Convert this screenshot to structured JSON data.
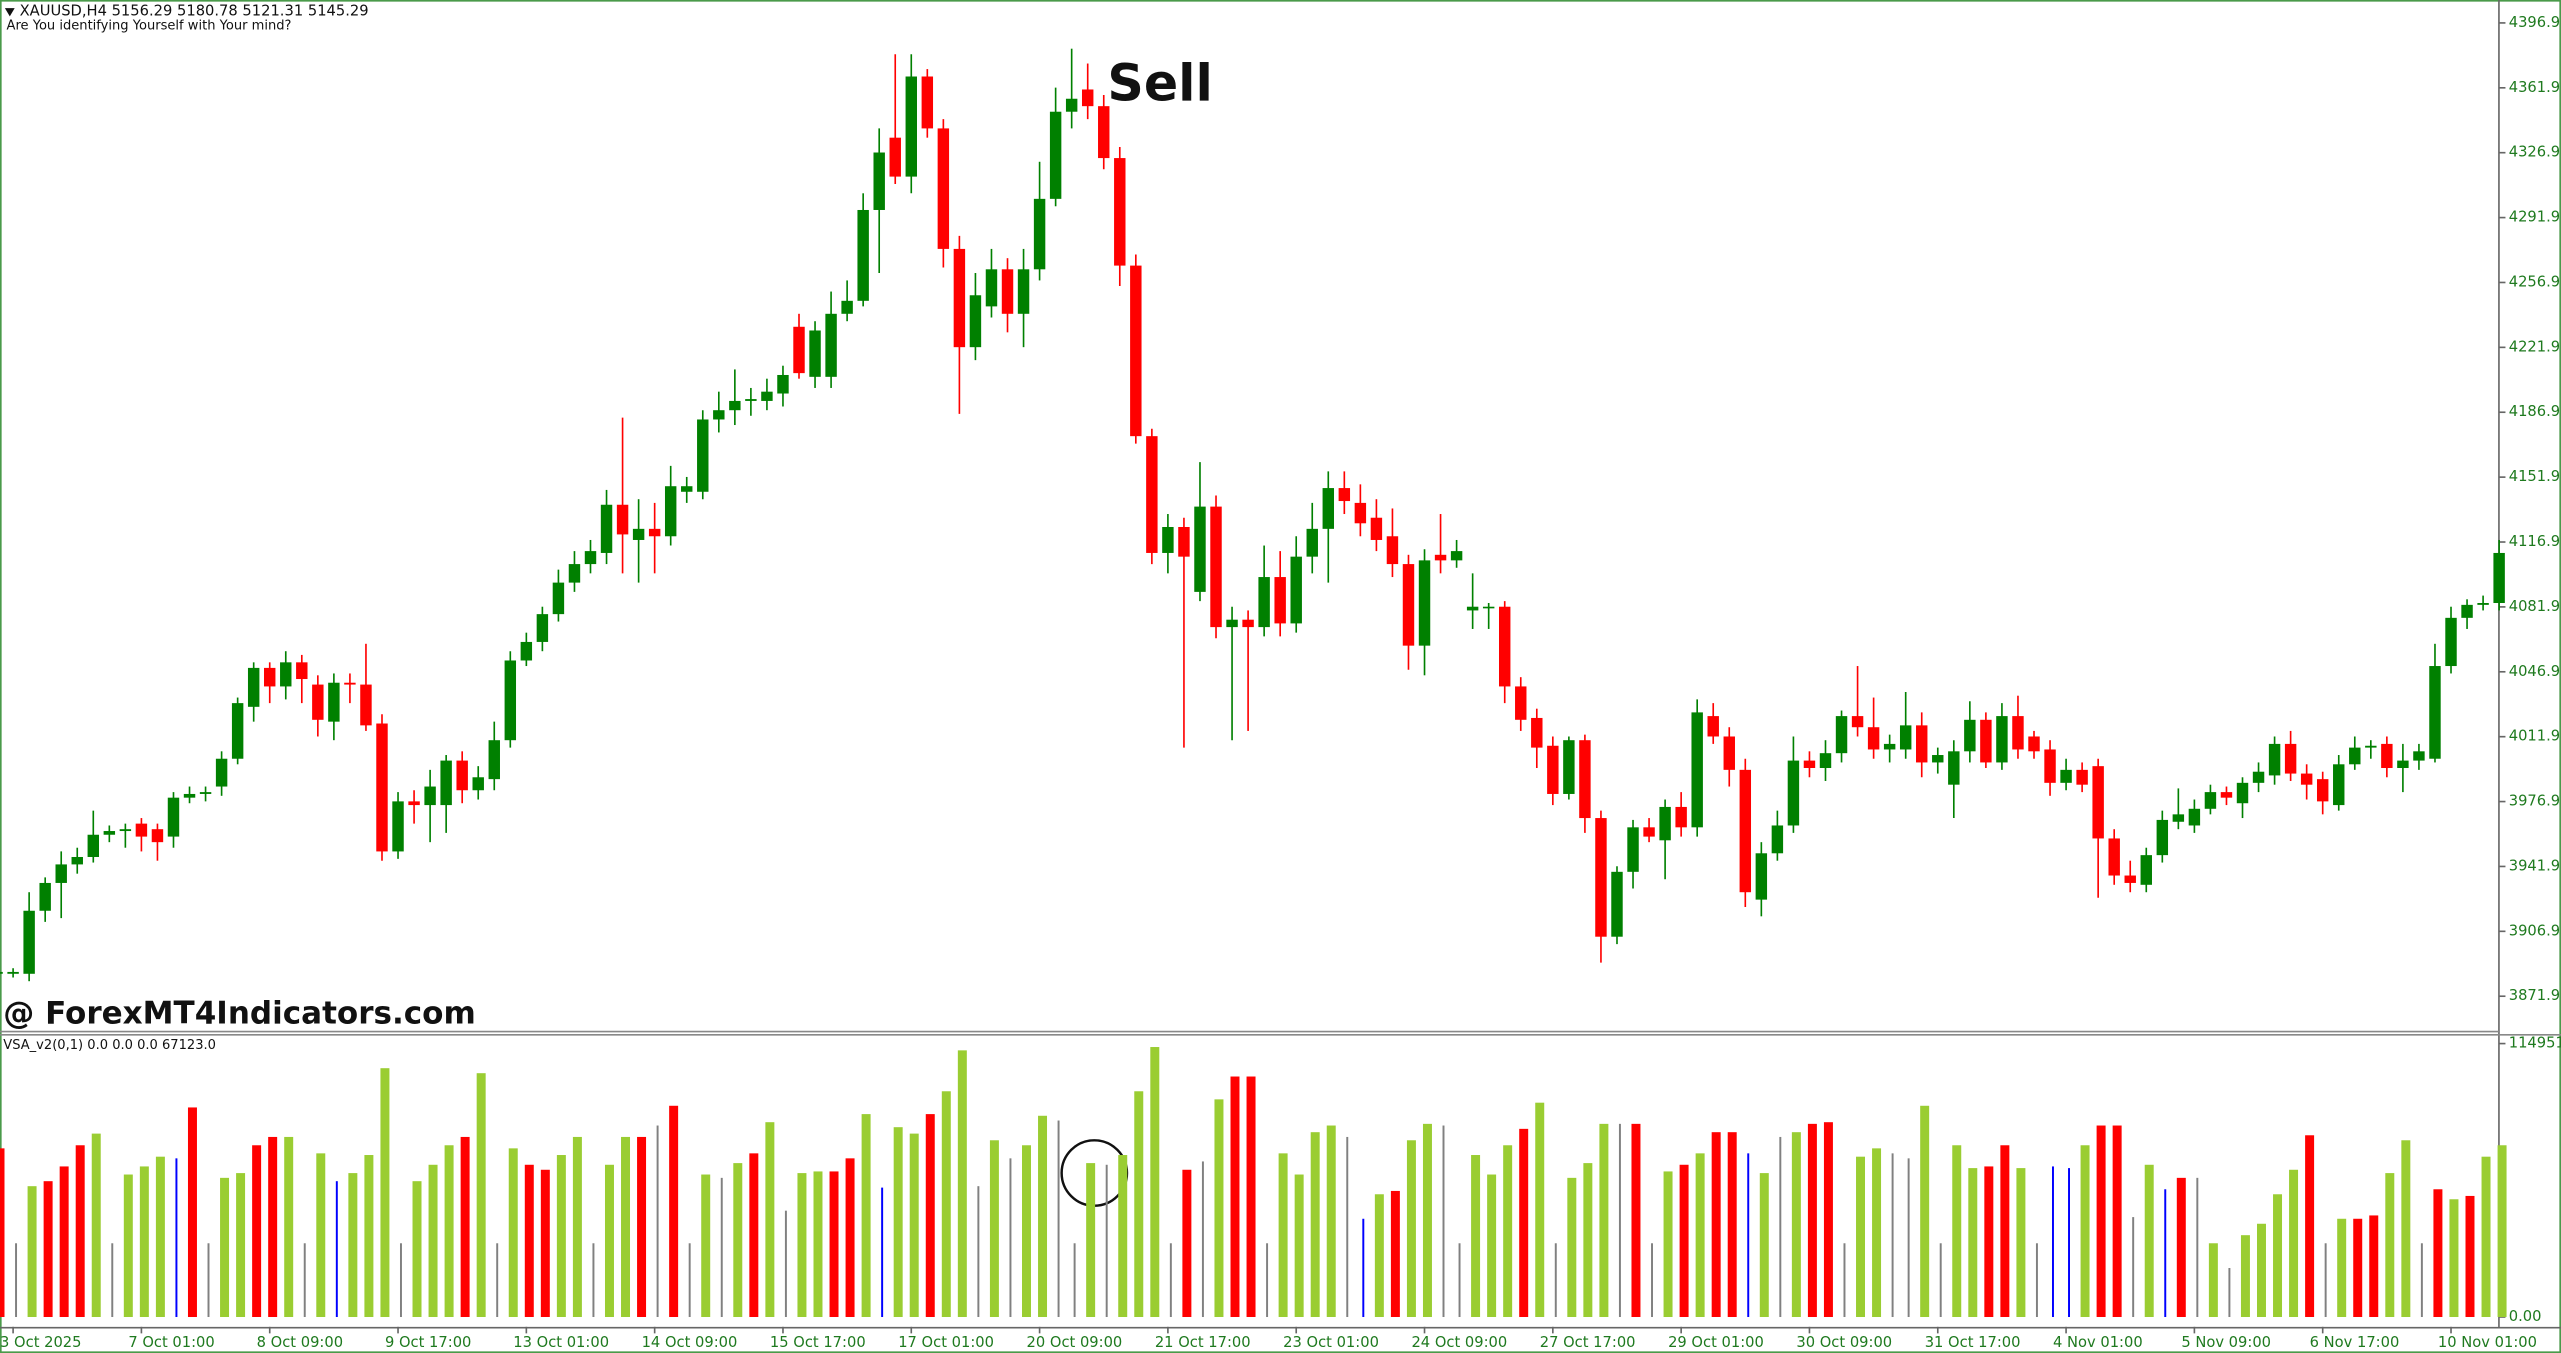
{
  "chart_data": [
    {
      "type": "candlestick",
      "title": "XAUUSD,H4  5156.29 5180.78 5121.31 5145.29",
      "subtitle": "Are You identifying Yourself with Your mind?",
      "annotations": [
        "Sell"
      ],
      "watermark": "@ ForexMT4Indicators.com",
      "up_color": "#008000",
      "down_color": "#ff0000",
      "categories": [
        null,
        "3 Oct 2025",
        null,
        null,
        null,
        null,
        null,
        null,
        null,
        "7 Oct 01:00",
        null,
        null,
        null,
        null,
        null,
        null,
        null,
        "8 Oct 09:00",
        null,
        null,
        null,
        null,
        null,
        null,
        null,
        "9 Oct 17:00",
        null,
        null,
        null,
        null,
        null,
        null,
        null,
        "13 Oct 01:00",
        null,
        null,
        null,
        null,
        null,
        null,
        null,
        "14 Oct 09:00",
        null,
        null,
        null,
        null,
        null,
        null,
        null,
        "15 Oct 17:00",
        null,
        null,
        null,
        null,
        null,
        null,
        null,
        "17 Oct 01:00",
        null,
        null,
        null,
        null,
        null,
        null,
        null,
        "20 Oct 09:00",
        null,
        null,
        null,
        null,
        null,
        null,
        null,
        "21 Oct 17:00",
        null,
        null,
        null,
        null,
        null,
        null,
        null,
        "23 Oct 01:00",
        null,
        null,
        null,
        null,
        null,
        null,
        null,
        "24 Oct 09:00",
        null,
        null,
        null,
        null,
        null,
        null,
        null,
        "27 Oct 17:00",
        null,
        null,
        null,
        null,
        null,
        null,
        null,
        "29 Oct 01:00",
        null,
        null,
        null,
        null,
        null,
        null,
        null,
        "30 Oct 09:00",
        null,
        null,
        null,
        null,
        null,
        null,
        null,
        "31 Oct 17:00",
        null,
        null,
        null,
        null,
        null,
        null,
        null,
        "4 Nov 01:00",
        null,
        null,
        null,
        null,
        null,
        null,
        null,
        "5 Nov 09:00",
        null,
        null,
        null,
        null,
        null,
        null,
        null,
        "6 Nov 17:00",
        null,
        null,
        null,
        null,
        null,
        null,
        null,
        "10 Nov 01:00",
        null,
        null,
        null
      ],
      "open": [
        3884,
        3884,
        3884,
        3918,
        3933,
        3943,
        3947,
        3959,
        3961,
        3965,
        3962,
        3958,
        3979,
        3981,
        3985,
        4000,
        4028,
        4049,
        4039,
        4052,
        4040,
        4020,
        4041,
        4040,
        4019,
        3950,
        3977,
        3975,
        3975,
        3999,
        3983,
        3989,
        4010,
        4053,
        4063,
        4078,
        4095,
        4105,
        4111,
        4137,
        4118,
        4124,
        4120,
        4144,
        4144,
        4183,
        4188,
        4193,
        4193,
        4197,
        4233,
        4206,
        4206,
        4240,
        4247,
        4296,
        4335,
        4314,
        4368,
        4340,
        4275,
        4222,
        4244,
        4264,
        4240,
        4264,
        4302,
        4349,
        4361,
        4352,
        4324,
        4266,
        4174,
        4111,
        4125,
        4090,
        4136,
        4071,
        4075,
        4071,
        4098,
        4073,
        4109,
        4124,
        4146,
        4138,
        4130,
        4120,
        4105,
        4061,
        4110,
        4107,
        4080,
        4082,
        4082,
        4039,
        4022,
        4007,
        3981,
        4010,
        3968,
        3904,
        3939,
        3963,
        3956,
        3974,
        3963,
        4023,
        4012,
        3994,
        3924,
        3949,
        3964,
        3999,
        3995,
        4003,
        4023,
        4017,
        4005,
        4005,
        4018,
        3998,
        3986,
        4004,
        4021,
        3998,
        4023,
        4012,
        4005,
        3987,
        3994,
        3996,
        3957,
        3937,
        3932,
        3948,
        3966,
        3964,
        3973,
        3982,
        3976,
        3987,
        3991,
        4008,
        3992,
        3989,
        3975,
        3997,
        4006,
        4008,
        3995,
        3999,
        4000,
        4050,
        4076,
        4083,
        4084
      ],
      "high": [
        3887,
        3887,
        3928,
        3936,
        3950,
        3952,
        3972,
        3964,
        3965,
        3968,
        3965,
        3982,
        3985,
        3985,
        4004,
        4033,
        4052,
        4052,
        4058,
        4056,
        4045,
        4046,
        4046,
        4062,
        4024,
        3982,
        3983,
        3994,
        4002,
        4004,
        3996,
        4020,
        4058,
        4068,
        4082,
        4102,
        4112,
        4118,
        4145,
        4184,
        4140,
        4138,
        4158,
        4152,
        4188,
        4198,
        4210,
        4200,
        4205,
        4212,
        4240,
        4236,
        4252,
        4258,
        4305,
        4340,
        4380,
        4380,
        4372,
        4345,
        4282,
        4262,
        4275,
        4270,
        4275,
        4322,
        4362,
        4383,
        4375,
        4358,
        4330,
        4272,
        4178,
        4132,
        4130,
        4160,
        4142,
        4082,
        4080,
        4115,
        4112,
        4120,
        4138,
        4155,
        4155,
        4148,
        4140,
        4135,
        4110,
        4113,
        4132,
        4118,
        4100,
        4084,
        4085,
        4044,
        4027,
        4012,
        4012,
        4013,
        3972,
        3942,
        3967,
        3968,
        3978,
        3982,
        4032,
        4030,
        4017,
        4000,
        3955,
        3972,
        4012,
        4004,
        4010,
        4026,
        4050,
        4033,
        4013,
        4036,
        4025,
        4006,
        4010,
        4031,
        4025,
        4030,
        4034,
        4015,
        4010,
        4000,
        3998,
        4000,
        3962,
        3945,
        3952,
        3972,
        3984,
        3978,
        3986,
        3985,
        3990,
        3998,
        4012,
        4015,
        3997,
        3993,
        4002,
        4012,
        4010,
        4012,
        4008,
        4008,
        4062,
        4082,
        4086,
        4088,
        4118
      ],
      "low": [
        3880,
        3882,
        3880,
        3912,
        3914,
        3938,
        3944,
        3955,
        3952,
        3950,
        3945,
        3952,
        3976,
        3977,
        3980,
        3997,
        4020,
        4030,
        4032,
        4030,
        4012,
        4010,
        4030,
        4015,
        3945,
        3946,
        3965,
        3955,
        3960,
        3976,
        3978,
        3983,
        4006,
        4050,
        4058,
        4074,
        4090,
        4100,
        4105,
        4100,
        4095,
        4100,
        4115,
        4138,
        4140,
        4176,
        4180,
        4185,
        4188,
        4190,
        4205,
        4200,
        4200,
        4236,
        4244,
        4262,
        4310,
        4305,
        4335,
        4265,
        4186,
        4215,
        4238,
        4230,
        4222,
        4258,
        4298,
        4340,
        4345,
        4318,
        4255,
        4170,
        4105,
        4100,
        4006,
        4085,
        4065,
        4010,
        4015,
        4066,
        4066,
        4068,
        4100,
        4095,
        4132,
        4120,
        4112,
        4098,
        4048,
        4045,
        4100,
        4103,
        4070,
        4070,
        4030,
        4015,
        3995,
        3975,
        3978,
        3960,
        3890,
        3900,
        3930,
        3955,
        3935,
        3958,
        3958,
        4008,
        3985,
        3920,
        3915,
        3945,
        3960,
        3990,
        3988,
        3998,
        4012,
        4000,
        3998,
        4000,
        3990,
        3992,
        3968,
        3998,
        3995,
        3994,
        4000,
        4000,
        3980,
        3983,
        3982,
        3925,
        3932,
        3928,
        3928,
        3944,
        3962,
        3960,
        3970,
        3975,
        3968,
        3982,
        3986,
        3988,
        3978,
        3970,
        3972,
        3994,
        4000,
        3990,
        3982,
        3994,
        3998,
        4046,
        4070,
        4080,
        4080
      ],
      "close": [
        3885,
        3885,
        3918,
        3933,
        3943,
        3947,
        3959,
        3961,
        3962,
        3958,
        3955,
        3979,
        3981,
        3982,
        4000,
        4030,
        4049,
        4039,
        4052,
        4043,
        4021,
        4041,
        4040,
        4018,
        3950,
        3977,
        3975,
        3985,
        3999,
        3983,
        3990,
        4010,
        4053,
        4063,
        4078,
        4095,
        4105,
        4112,
        4137,
        4121,
        4124,
        4120,
        4147,
        4147,
        4183,
        4188,
        4193,
        4194,
        4198,
        4207,
        4208,
        4231,
        4240,
        4247,
        4296,
        4327,
        4314,
        4368,
        4340,
        4275,
        4222,
        4250,
        4264,
        4240,
        4264,
        4302,
        4349,
        4356,
        4352,
        4324,
        4266,
        4174,
        4111,
        4125,
        4109,
        4136,
        4071,
        4075,
        4071,
        4098,
        4073,
        4109,
        4124,
        4146,
        4139,
        4127,
        4118,
        4105,
        4061,
        4107,
        4107,
        4112,
        4082,
        4082,
        4039,
        4021,
        4006,
        3981,
        4010,
        3968,
        3904,
        3939,
        3963,
        3958,
        3974,
        3963,
        4025,
        4012,
        3994,
        3928,
        3949,
        3964,
        3999,
        3995,
        4003,
        4023,
        4017,
        4005,
        4008,
        4018,
        3998,
        4002,
        4004,
        4021,
        3998,
        4023,
        4005,
        4004,
        3987,
        3994,
        3986,
        3957,
        3937,
        3933,
        3948,
        3967,
        3970,
        3973,
        3982,
        3979,
        3987,
        3993,
        4008,
        3992,
        3986,
        3977,
        3997,
        4006,
        4007,
        3995,
        3999,
        4004,
        4050,
        4076,
        4083,
        4084,
        4111
      ],
      "ylim": [
        3853.3,
        4407.5
      ],
      "yticks": [
        {
          "value": 4396.9,
          "label": "4396.90"
        },
        {
          "value": 4361.9,
          "label": "4361.90"
        },
        {
          "value": 4326.9,
          "label": "4326.90"
        },
        {
          "value": 4291.9,
          "label": "4291.90"
        },
        {
          "value": 4256.9,
          "label": "4256.90"
        },
        {
          "value": 4221.9,
          "label": "4221.90"
        },
        {
          "value": 4186.9,
          "label": "4186.90"
        },
        {
          "value": 4151.9,
          "label": "4151.90"
        },
        {
          "value": 4116.9,
          "label": "4116.90"
        },
        {
          "value": 4081.9,
          "label": "4081.90"
        },
        {
          "value": 4046.9,
          "label": "4046.90"
        },
        {
          "value": 4011.9,
          "label": "4011.90"
        },
        {
          "value": 3976.9,
          "label": "3976.90"
        },
        {
          "value": 3941.9,
          "label": "3941.90"
        },
        {
          "value": 3906.9,
          "label": "3906.90"
        },
        {
          "value": 3871.9,
          "label": "3871.90"
        }
      ]
    },
    {
      "type": "bar",
      "title": "VSA_v2(0,1) 0.0 0.0 0.0 67123.0",
      "thin_colors": [
        "#808080",
        "#0000ff"
      ],
      "values": [
        70900,
        31000,
        55000,
        57100,
        63300,
        72200,
        77100,
        31000,
        59900,
        63300,
        67400,
        66700,
        88100,
        31000,
        58500,
        60500,
        72200,
        75700,
        75700,
        31000,
        68800,
        57100,
        60500,
        68100,
        104600,
        31000,
        57100,
        64000,
        72200,
        75700,
        102500,
        31000,
        70900,
        64000,
        61900,
        68100,
        75700,
        31000,
        64000,
        75700,
        75700,
        80500,
        88800,
        31000,
        59900,
        58500,
        64700,
        68800,
        81900,
        44700,
        60500,
        61200,
        61200,
        66700,
        85300,
        54400,
        79800,
        77100,
        85300,
        94900,
        112100,
        55000,
        74300,
        66700,
        72200,
        84600,
        82600,
        31000,
        64700,
        64000,
        68100,
        94900,
        113500,
        31000,
        61900,
        65400,
        91500,
        101100,
        101100,
        31000,
        68800,
        59900,
        77700,
        80500,
        75700,
        41300,
        51600,
        53000,
        74300,
        81200,
        80500,
        31000,
        68100,
        59900,
        72200,
        79100,
        90100,
        31000,
        58500,
        64700,
        81200,
        81200,
        81200,
        31000,
        61200,
        64000,
        68800,
        77700,
        77700,
        68800,
        60500,
        75700,
        77700,
        81200,
        81900,
        31000,
        67400,
        70900,
        68800,
        66700,
        88800,
        31000,
        72200,
        62600,
        63300,
        72200,
        62600,
        31000,
        63300,
        62600,
        72200,
        80500,
        80500,
        42000,
        64000,
        53700,
        58500,
        58500,
        31000,
        20600,
        34400,
        39200,
        51600,
        61900,
        76400,
        31000,
        41300,
        41300,
        42700,
        60500,
        74300,
        31000,
        53700,
        49500,
        50900,
        67400,
        72200
      ],
      "colors": [
        "#ff0000",
        "#808080",
        "#9acd32",
        "#ff0000",
        "#ff0000",
        "#ff0000",
        "#9acd32",
        "#808080",
        "#9acd32",
        "#9acd32",
        "#9acd32",
        "#0000ff",
        "#ff0000",
        "#808080",
        "#9acd32",
        "#9acd32",
        "#ff0000",
        "#ff0000",
        "#9acd32",
        "#808080",
        "#9acd32",
        "#0000ff",
        "#9acd32",
        "#9acd32",
        "#9acd32",
        "#808080",
        "#9acd32",
        "#9acd32",
        "#9acd32",
        "#ff0000",
        "#9acd32",
        "#808080",
        "#9acd32",
        "#ff0000",
        "#ff0000",
        "#9acd32",
        "#9acd32",
        "#808080",
        "#9acd32",
        "#9acd32",
        "#ff0000",
        "#808080",
        "#ff0000",
        "#808080",
        "#9acd32",
        "#808080",
        "#9acd32",
        "#ff0000",
        "#9acd32",
        "#808080",
        "#9acd32",
        "#9acd32",
        "#ff0000",
        "#ff0000",
        "#9acd32",
        "#0000ff",
        "#9acd32",
        "#9acd32",
        "#ff0000",
        "#9acd32",
        "#9acd32",
        "#808080",
        "#9acd32",
        "#808080",
        "#9acd32",
        "#9acd32",
        "#808080",
        "#808080",
        "#9acd32",
        "#808080",
        "#9acd32",
        "#9acd32",
        "#9acd32",
        "#808080",
        "#ff0000",
        "#808080",
        "#9acd32",
        "#ff0000",
        "#ff0000",
        "#808080",
        "#9acd32",
        "#9acd32",
        "#9acd32",
        "#9acd32",
        "#808080",
        "#0000ff",
        "#9acd32",
        "#ff0000",
        "#9acd32",
        "#9acd32",
        "#808080",
        "#808080",
        "#9acd32",
        "#9acd32",
        "#9acd32",
        "#ff0000",
        "#9acd32",
        "#808080",
        "#9acd32",
        "#9acd32",
        "#9acd32",
        "#808080",
        "#ff0000",
        "#808080",
        "#9acd32",
        "#ff0000",
        "#9acd32",
        "#ff0000",
        "#ff0000",
        "#0000ff",
        "#9acd32",
        "#808080",
        "#9acd32",
        "#ff0000",
        "#ff0000",
        "#808080",
        "#9acd32",
        "#9acd32",
        "#808080",
        "#808080",
        "#9acd32",
        "#808080",
        "#9acd32",
        "#9acd32",
        "#ff0000",
        "#ff0000",
        "#9acd32",
        "#808080",
        "#0000ff",
        "#0000ff",
        "#9acd32",
        "#ff0000",
        "#ff0000",
        "#808080",
        "#9acd32",
        "#0000ff",
        "#ff0000",
        "#808080",
        "#9acd32",
        "#808080",
        "#9acd32",
        "#9acd32",
        "#9acd32",
        "#9acd32",
        "#ff0000",
        "#808080",
        "#9acd32",
        "#ff0000",
        "#ff0000",
        "#9acd32",
        "#9acd32",
        "#808080",
        "#ff0000",
        "#9acd32",
        "#ff0000",
        "#9acd32",
        "#9acd32"
      ],
      "ylim": [
        -3440,
        118300
      ],
      "yticks": [
        114951.5,
        {
          "value": 0,
          "label": "0.00"
        }
      ]
    }
  ]
}
